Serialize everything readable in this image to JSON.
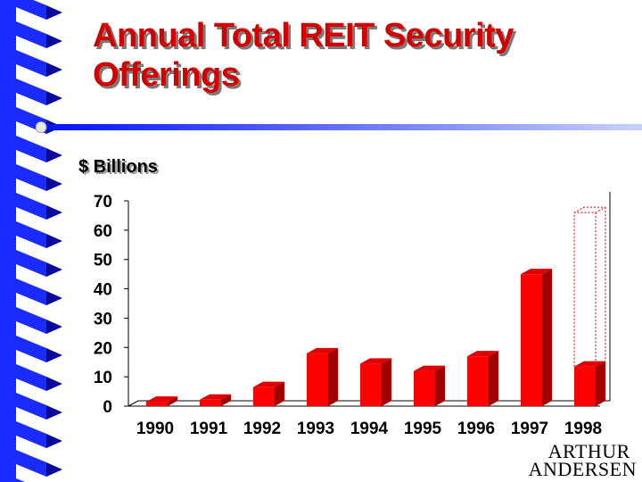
{
  "slide": {
    "title_line1": "Annual Total REIT Security",
    "title_line2": "Offerings",
    "unit_label": "$ Billions",
    "logo_line1": "ARTHUR",
    "logo_line2": "ANDERSEN"
  },
  "colors": {
    "title": "#d40000",
    "bar_front": "#ff0000",
    "bar_side": "#a00000",
    "bar_top": "#e00000",
    "stripe_blue": "#1a2bff",
    "rule_blue": "#2a4cff"
  },
  "chart_data": {
    "type": "bar",
    "categories": [
      "1990",
      "1991",
      "1992",
      "1993",
      "1994",
      "1995",
      "1996",
      "1997",
      "1998"
    ],
    "values": [
      1.5,
      2.2,
      6.5,
      18,
      14.5,
      12,
      17,
      45,
      13.5
    ],
    "projection_outline": {
      "category": "1998",
      "value": 66
    },
    "ylabel": "$ Billions",
    "ylim": [
      0,
      70
    ],
    "yticks": [
      "0",
      "10",
      "20",
      "30",
      "40",
      "50",
      "60",
      "70"
    ],
    "grid": false
  }
}
